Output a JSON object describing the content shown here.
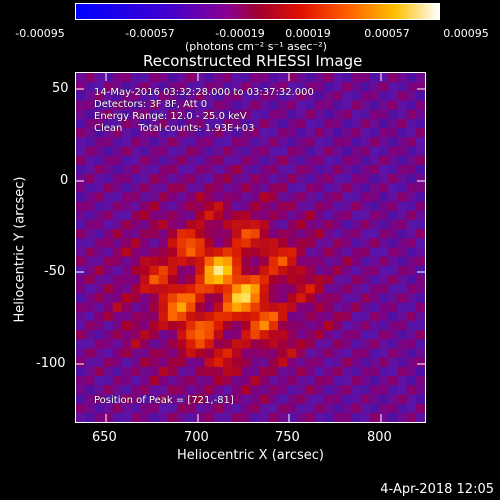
{
  "colorbar": {
    "ticks": [
      "-0.00095",
      "-0.00057",
      "-0.00019",
      "0.00019",
      "0.00057",
      "0.00095"
    ],
    "units": "(photons cm⁻² s⁻¹ asec⁻²)"
  },
  "chart_data": {
    "type": "heatmap",
    "title": "Reconstructed RHESSI Image",
    "xlabel": "Heliocentric X (arcsec)",
    "ylabel": "Heliocentric Y (arcsec)",
    "xlim": [
      634,
      824
    ],
    "ylim": [
      -136,
      54
    ],
    "x_ticks": [
      "650",
      "700",
      "750",
      "800"
    ],
    "y_ticks": [
      "50",
      "0",
      "-50",
      "-100"
    ],
    "colorbar_range": [
      -0.00095,
      0.00095
    ],
    "annotations": {
      "time_range": "14-May-2016 03:32:28.000 to 03:37:32.000",
      "detectors": "Detectors: 3F 8F, Att 0",
      "energy_range": "Energy Range: 12.0 - 25.0 keV",
      "clean_counts": "Clean     Total counts: 1.93E+03",
      "peak": "Position of Peak = [721,-81]"
    },
    "peak": [
      721,
      -81
    ]
  },
  "footer": {
    "timestamp": "4-Apr-2018 12:05"
  }
}
